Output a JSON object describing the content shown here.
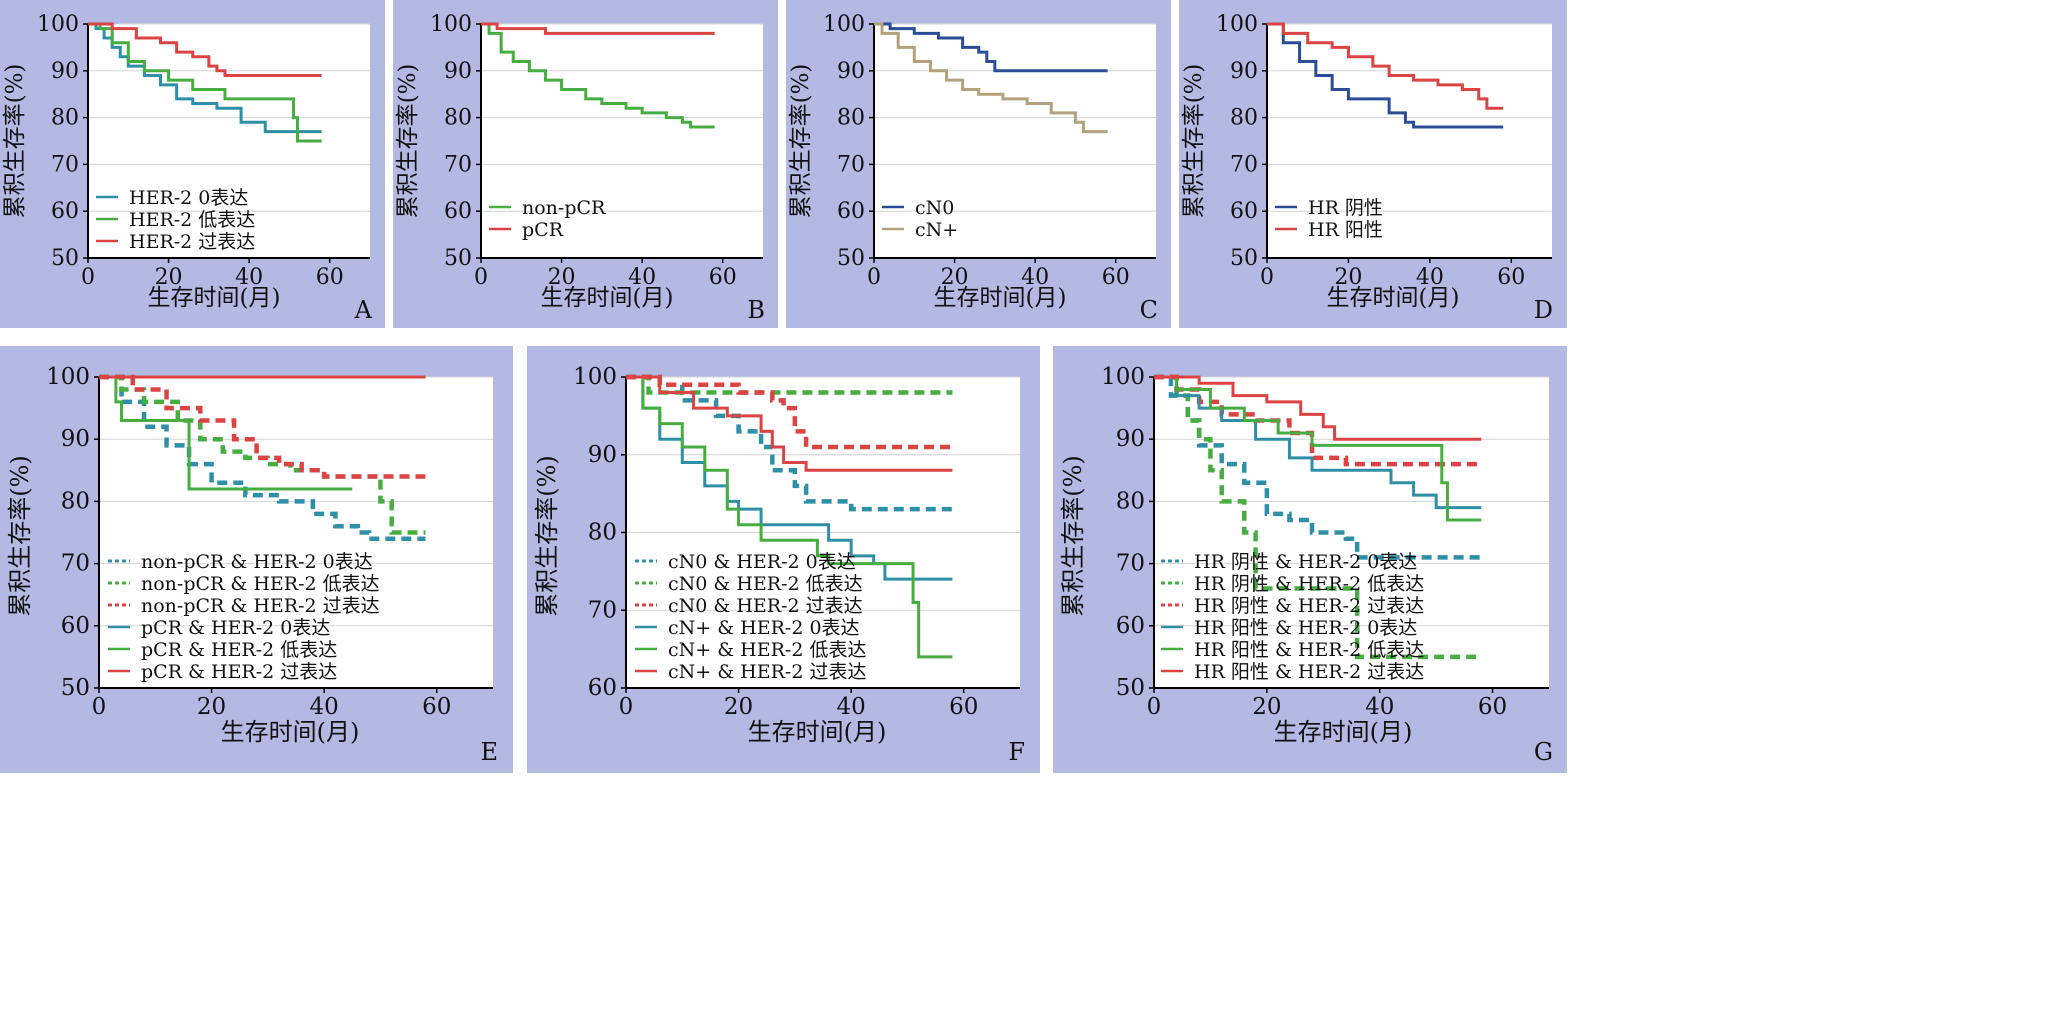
{
  "figure": {
    "xlabel": "生存时间(月)",
    "ylabel": "累积生存率(%)",
    "colors": {
      "panel_background": "#b3b9e2",
      "plot_background": "#ffffff",
      "teal": "#2e8fa6",
      "green": "#47ad41",
      "red": "#dc4343",
      "navy": "#2a4d95",
      "tan": "#b3a17c",
      "grey": "#9a9a9a"
    }
  },
  "chart_data": [
    {
      "panel": "A",
      "type": "line",
      "xlim": [
        0,
        70
      ],
      "ylim": [
        50,
        100
      ],
      "x_ticks": [
        0,
        20,
        40,
        60
      ],
      "y_ticks": [
        50,
        60,
        70,
        80,
        90,
        100
      ],
      "grid": "horizontal",
      "legend_position": "lower-left",
      "series": [
        {
          "name": "HER-2 0表达",
          "color": "#2e8fa6",
          "dash": false,
          "x": [
            0,
            2,
            4,
            6,
            8,
            10,
            14,
            18,
            22,
            26,
            32,
            38,
            44,
            50,
            58
          ],
          "y": [
            100,
            99,
            97,
            95,
            93,
            91,
            89,
            87,
            84,
            83,
            82,
            79,
            77,
            77,
            77
          ]
        },
        {
          "name": "HER-2 低表达",
          "color": "#47ad41",
          "dash": false,
          "x": [
            0,
            3,
            6,
            10,
            14,
            20,
            26,
            34,
            40,
            46,
            50,
            51,
            52,
            58
          ],
          "y": [
            100,
            99,
            96,
            92,
            90,
            88,
            86,
            84,
            84,
            84,
            84,
            80,
            75,
            75
          ]
        },
        {
          "name": "HER-2 过表达",
          "color": "#dc4343",
          "dash": false,
          "x": [
            0,
            6,
            12,
            18,
            22,
            26,
            30,
            32,
            34,
            40,
            50,
            58
          ],
          "y": [
            100,
            99,
            97,
            96,
            94,
            93,
            91,
            90,
            89,
            89,
            89,
            89
          ]
        }
      ]
    },
    {
      "panel": "B",
      "type": "line",
      "xlim": [
        0,
        70
      ],
      "ylim": [
        50,
        100
      ],
      "x_ticks": [
        0,
        20,
        40,
        60
      ],
      "y_ticks": [
        50,
        60,
        70,
        80,
        90,
        100
      ],
      "grid": "horizontal",
      "legend_position": "lower-left",
      "series": [
        {
          "name": "non-pCR",
          "color": "#47ad41",
          "dash": false,
          "x": [
            0,
            2,
            5,
            8,
            12,
            16,
            20,
            26,
            30,
            36,
            40,
            46,
            50,
            52,
            58
          ],
          "y": [
            100,
            98,
            94,
            92,
            90,
            88,
            86,
            84,
            83,
            82,
            81,
            80,
            79,
            78,
            78
          ]
        },
        {
          "name": "pCR",
          "color": "#dc4343",
          "dash": false,
          "x": [
            0,
            4,
            16,
            58
          ],
          "y": [
            100,
            99,
            98,
            98
          ]
        }
      ]
    },
    {
      "panel": "C",
      "type": "line",
      "xlim": [
        0,
        70
      ],
      "ylim": [
        50,
        100
      ],
      "x_ticks": [
        0,
        20,
        40,
        60
      ],
      "y_ticks": [
        50,
        60,
        70,
        80,
        90,
        100
      ],
      "grid": "horizontal",
      "legend_position": "lower-left",
      "series": [
        {
          "name": "cN0",
          "color": "#2a4d95",
          "dash": false,
          "x": [
            0,
            4,
            10,
            16,
            22,
            26,
            28,
            30,
            40,
            50,
            58
          ],
          "y": [
            100,
            99,
            98,
            97,
            95,
            94,
            92,
            90,
            90,
            90,
            90
          ]
        },
        {
          "name": "cN+",
          "color": "#b3a17c",
          "dash": false,
          "x": [
            0,
            2,
            6,
            10,
            14,
            18,
            22,
            26,
            32,
            38,
            44,
            50,
            52,
            58
          ],
          "y": [
            100,
            98,
            95,
            92,
            90,
            88,
            86,
            85,
            84,
            83,
            81,
            79,
            77,
            77
          ]
        }
      ]
    },
    {
      "panel": "D",
      "type": "line",
      "xlim": [
        0,
        70
      ],
      "ylim": [
        50,
        100
      ],
      "x_ticks": [
        0,
        20,
        40,
        60
      ],
      "y_ticks": [
        50,
        60,
        70,
        80,
        90,
        100
      ],
      "grid": "horizontal",
      "legend_position": "lower-left",
      "series": [
        {
          "name": "HR 阴性",
          "color": "#2a4d95",
          "dash": false,
          "x": [
            0,
            4,
            8,
            12,
            16,
            20,
            26,
            30,
            34,
            36,
            44,
            50,
            58
          ],
          "y": [
            100,
            96,
            92,
            89,
            86,
            84,
            84,
            81,
            79,
            78,
            78,
            78,
            78
          ]
        },
        {
          "name": "HR 阳性",
          "color": "#dc4343",
          "dash": false,
          "x": [
            0,
            4,
            10,
            16,
            20,
            26,
            30,
            36,
            42,
            48,
            52,
            54,
            58
          ],
          "y": [
            100,
            98,
            96,
            95,
            93,
            91,
            89,
            88,
            87,
            86,
            84,
            82,
            82
          ]
        }
      ]
    },
    {
      "panel": "E",
      "type": "line",
      "xlim": [
        0,
        70
      ],
      "ylim": [
        50,
        100
      ],
      "x_ticks": [
        0,
        20,
        40,
        60
      ],
      "y_ticks": [
        50,
        60,
        70,
        80,
        90,
        100
      ],
      "grid": "horizontal",
      "legend_position": "lower-left",
      "series": [
        {
          "name": "non-pCR & HER-2 0表达",
          "color": "#2e8fa6",
          "dash": true,
          "x": [
            0,
            4,
            8,
            12,
            16,
            20,
            26,
            32,
            38,
            42,
            46,
            48,
            54,
            58
          ],
          "y": [
            100,
            96,
            92,
            89,
            86,
            83,
            81,
            80,
            78,
            76,
            75,
            74,
            74,
            74
          ]
        },
        {
          "name": "non-pCR & HER-2 低表达",
          "color": "#47ad41",
          "dash": true,
          "x": [
            0,
            4,
            8,
            14,
            18,
            22,
            26,
            30,
            34,
            40,
            48,
            50,
            52,
            58
          ],
          "y": [
            100,
            98,
            96,
            93,
            90,
            88,
            87,
            86,
            85,
            84,
            84,
            80,
            75,
            75
          ]
        },
        {
          "name": "non-pCR & HER-2 过表达",
          "color": "#dc4343",
          "dash": true,
          "x": [
            0,
            6,
            12,
            18,
            24,
            28,
            32,
            36,
            40,
            50,
            58
          ],
          "y": [
            100,
            98,
            95,
            93,
            90,
            87,
            86,
            85,
            84,
            84,
            84
          ]
        },
        {
          "name": "pCR & HER-2 0表达",
          "color": "#2e8fa6",
          "dash": false,
          "x": [
            0,
            58
          ],
          "y": [
            100,
            100
          ]
        },
        {
          "name": "pCR & HER-2 低表达",
          "color": "#47ad41",
          "dash": false,
          "x": [
            0,
            3,
            4,
            16,
            16,
            30,
            45
          ],
          "y": [
            100,
            96,
            93,
            93,
            82,
            82,
            82
          ]
        },
        {
          "name": "pCR & HER-2 过表达",
          "color": "#dc4343",
          "dash": false,
          "x": [
            0,
            58
          ],
          "y": [
            100,
            100
          ]
        }
      ]
    },
    {
      "panel": "F",
      "type": "line",
      "xlim": [
        0,
        70
      ],
      "ylim": [
        60,
        100
      ],
      "x_ticks": [
        0,
        20,
        40,
        60
      ],
      "y_ticks": [
        60,
        70,
        80,
        90,
        100
      ],
      "grid": "horizontal",
      "legend_position": "lower-left",
      "series": [
        {
          "name": "cN0 & HER-2 0表达",
          "color": "#2e8fa6",
          "dash": true,
          "x": [
            0,
            6,
            10,
            16,
            20,
            24,
            26,
            30,
            32,
            40,
            50,
            58
          ],
          "y": [
            100,
            99,
            97,
            95,
            93,
            91,
            88,
            86,
            84,
            83,
            83,
            83
          ]
        },
        {
          "name": "cN0 & HER-2 低表达",
          "color": "#47ad41",
          "dash": true,
          "x": [
            0,
            4,
            58
          ],
          "y": [
            100,
            98,
            98
          ]
        },
        {
          "name": "cN0 & HER-2 过表达",
          "color": "#dc4343",
          "dash": true,
          "x": [
            0,
            6,
            20,
            26,
            28,
            30,
            32,
            40,
            58
          ],
          "y": [
            100,
            99,
            98,
            97,
            96,
            93,
            91,
            91,
            91
          ]
        },
        {
          "name": "cN+ & HER-2 0表达",
          "color": "#2e8fa6",
          "dash": false,
          "x": [
            0,
            3,
            6,
            10,
            14,
            18,
            20,
            24,
            30,
            36,
            40,
            44,
            46,
            52,
            58
          ],
          "y": [
            100,
            96,
            92,
            89,
            86,
            84,
            83,
            81,
            81,
            79,
            77,
            76,
            74,
            74,
            74
          ]
        },
        {
          "name": "cN+ & HER-2 低表达",
          "color": "#47ad41",
          "dash": false,
          "x": [
            0,
            3,
            6,
            10,
            14,
            18,
            20,
            24,
            30,
            34,
            36,
            50,
            51,
            52,
            58
          ],
          "y": [
            100,
            96,
            94,
            91,
            88,
            83,
            81,
            79,
            79,
            77,
            76,
            76,
            71,
            64,
            64
          ]
        },
        {
          "name": "cN+ & HER-2 过表达",
          "color": "#dc4343",
          "dash": false,
          "x": [
            0,
            6,
            12,
            18,
            24,
            26,
            28,
            32,
            40,
            50,
            58
          ],
          "y": [
            100,
            98,
            96,
            95,
            93,
            91,
            89,
            88,
            88,
            88,
            88
          ]
        }
      ]
    },
    {
      "panel": "G",
      "type": "line",
      "xlim": [
        0,
        70
      ],
      "ylim": [
        50,
        100
      ],
      "x_ticks": [
        0,
        20,
        40,
        60
      ],
      "y_ticks": [
        50,
        60,
        70,
        80,
        90,
        100
      ],
      "grid": "horizontal",
      "legend_position": "lower-left",
      "series": [
        {
          "name": "HR 阴性 & HER-2 0表达",
          "color": "#2e8fa6",
          "dash": true,
          "x": [
            0,
            3,
            6,
            8,
            12,
            16,
            20,
            24,
            28,
            34,
            36,
            40,
            50,
            58
          ],
          "y": [
            100,
            97,
            93,
            89,
            86,
            83,
            78,
            77,
            75,
            74,
            71,
            71,
            71,
            71
          ]
        },
        {
          "name": "HR 阴性 & HER-2 低表达",
          "color": "#47ad41",
          "dash": true,
          "x": [
            0,
            4,
            6,
            8,
            10,
            12,
            16,
            18,
            26,
            30,
            36,
            50,
            58
          ],
          "y": [
            100,
            97,
            93,
            90,
            85,
            80,
            75,
            66,
            66,
            66,
            55,
            55,
            55
          ]
        },
        {
          "name": "HR 阴性 & HER-2 过表达",
          "color": "#dc4343",
          "dash": true,
          "x": [
            0,
            4,
            8,
            12,
            18,
            24,
            28,
            34,
            40,
            50,
            58
          ],
          "y": [
            100,
            98,
            96,
            94,
            93,
            91,
            87,
            86,
            86,
            86,
            86
          ]
        },
        {
          "name": "HR 阳性 & HER-2 0表达",
          "color": "#2e8fa6",
          "dash": false,
          "x": [
            0,
            4,
            8,
            12,
            18,
            24,
            28,
            36,
            42,
            46,
            50,
            58
          ],
          "y": [
            100,
            97,
            95,
            93,
            90,
            87,
            85,
            85,
            83,
            81,
            79,
            79
          ]
        },
        {
          "name": "HR 阳性 & HER-2 低表达",
          "color": "#47ad41",
          "dash": false,
          "x": [
            0,
            4,
            10,
            16,
            22,
            28,
            40,
            50,
            51,
            52,
            58
          ],
          "y": [
            100,
            98,
            95,
            93,
            91,
            89,
            89,
            89,
            83,
            77,
            77
          ]
        },
        {
          "name": "HR 阳性 & HER-2 过表达",
          "color": "#dc4343",
          "dash": false,
          "x": [
            0,
            8,
            14,
            20,
            26,
            30,
            32,
            40,
            50,
            58
          ],
          "y": [
            100,
            99,
            97,
            96,
            94,
            92,
            90,
            90,
            90,
            90
          ]
        }
      ]
    }
  ]
}
